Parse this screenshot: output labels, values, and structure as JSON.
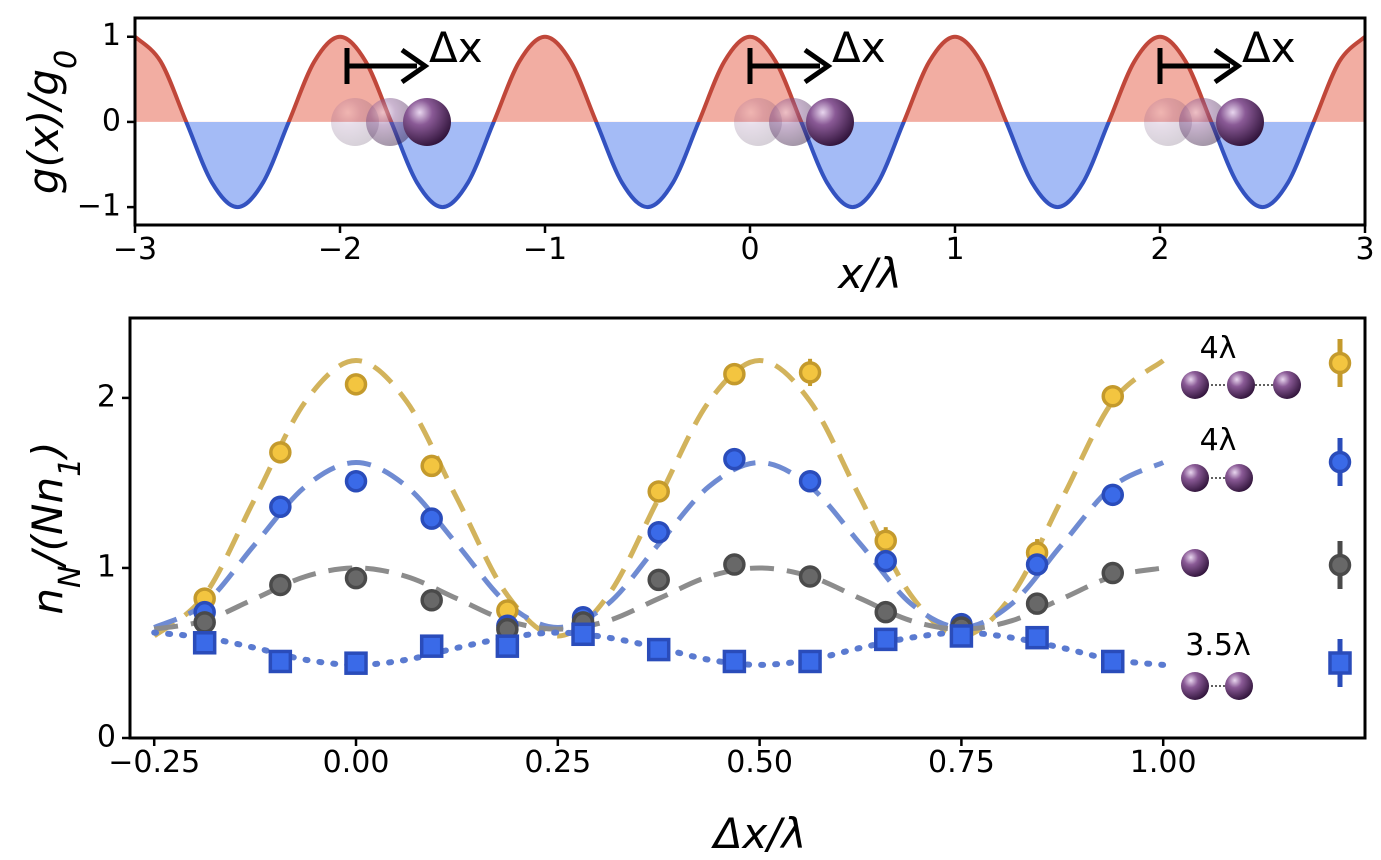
{
  "chart_data": [
    {
      "type": "area",
      "ylabel": [
        "g(x)/g",
        "0"
      ],
      "xlabel": "x/λ",
      "xlim": [
        -3,
        3
      ],
      "ylim": [
        -1.21,
        1.22
      ],
      "xticks": [
        {
          "value": -3,
          "label": "−3"
        },
        {
          "value": -2,
          "label": "−2"
        },
        {
          "value": -1,
          "label": "−1"
        },
        0,
        1,
        2,
        3
      ],
      "yticks": [
        {
          "value": -1,
          "label": "−1"
        },
        0,
        1
      ],
      "x": [
        -3,
        -2.875,
        -2.75,
        -2.625,
        -2.5,
        -2.375,
        -2.25,
        -2.125,
        -2,
        -1.875,
        -1.75,
        -1.625,
        -1.5,
        -1.375,
        -1.25,
        -1.125,
        -1,
        -0.875,
        -0.75,
        -0.625,
        -0.5,
        -0.375,
        -0.25,
        -0.125,
        0,
        0.125,
        0.25,
        0.375,
        0.5,
        0.625,
        0.75,
        0.875,
        1,
        1.125,
        1.25,
        1.375,
        1.5,
        1.625,
        1.75,
        1.875,
        2,
        2.125,
        2.25,
        2.375,
        2.5,
        2.625,
        2.75,
        2.875,
        3
      ],
      "values": [
        1,
        0.71,
        0,
        -0.71,
        -1,
        -0.71,
        0,
        0.71,
        1,
        0.71,
        0,
        -0.71,
        -1,
        -0.71,
        0,
        0.71,
        1,
        0.71,
        0,
        -0.71,
        -1,
        -0.71,
        0,
        0.71,
        1,
        0.71,
        0,
        -0.71,
        -1,
        -0.71,
        0,
        0.71,
        1,
        0.71,
        0,
        -0.71,
        -1,
        -0.71,
        0,
        0.71,
        1,
        0.71,
        0,
        -0.71,
        -1,
        -0.71,
        0,
        0.71,
        1
      ],
      "color_above": "#c0473a",
      "color_below": "#3352c0",
      "fill_above": "#f2ada2",
      "fill_below": "#a4bbf6",
      "annotations": [
        "Δx",
        "Δx",
        "Δx"
      ]
    },
    {
      "type": "scatter",
      "xlabel": "Δx/λ",
      "ylabel": [
        "n",
        "N",
        "/(Nn",
        "1",
        ")"
      ],
      "xlim": [
        -0.28,
        1.25
      ],
      "ylim": [
        0,
        2.47
      ],
      "xticks": [
        {
          "value": -0.25,
          "label": "−0.25"
        },
        {
          "value": 0,
          "label": "0.00"
        },
        {
          "value": 0.25,
          "label": "0.25"
        },
        {
          "value": 0.5,
          "label": "0.50"
        },
        {
          "value": 0.75,
          "label": "0.75"
        },
        {
          "value": 1,
          "label": "1.00"
        }
      ],
      "yticks": [
        0,
        1,
        2
      ],
      "x": [
        -0.1875,
        -0.09375,
        0,
        0.09375,
        0.1875,
        0.28125,
        0.375,
        0.46875,
        0.5625,
        0.65625,
        0.75,
        0.84375,
        0.9375
      ],
      "fit_x": [
        -0.25,
        -0.1875,
        -0.125,
        -0.0625,
        0,
        0.0625,
        0.125,
        0.1875,
        0.25,
        0.3125,
        0.375,
        0.4375,
        0.5,
        0.5625,
        0.625,
        0.6875,
        0.75,
        0.8125,
        0.875,
        0.9375,
        1
      ],
      "series": [
        {
          "name": "4λ",
          "color": "#f3c540",
          "edge": "#c49a2c",
          "marker": "circle",
          "values": [
            0.82,
            1.68,
            2.08,
            1.6,
            0.75,
            0.69,
            1.45,
            2.14,
            2.15,
            1.16,
            0.65,
            1.09,
            2.01
          ],
          "errors": [
            0.05,
            0.03,
            0.03,
            0.03,
            0.04,
            0.03,
            0.03,
            0.03,
            0.08,
            0.08,
            0.03,
            0.08,
            0.04
          ],
          "fit": [
            0.6,
            0.84,
            1.41,
            1.98,
            2.22,
            1.98,
            1.41,
            0.84,
            0.6,
            0.84,
            1.41,
            1.98,
            2.22,
            1.98,
            1.41,
            0.84,
            0.6,
            0.84,
            1.41,
            1.98,
            2.22
          ],
          "fit_color": "#d2b35c",
          "fit_style": "dashed"
        },
        {
          "name": "4λ",
          "color": "#3a6ae8",
          "edge": "#2a4cba",
          "marker": "circle",
          "values": [
            0.74,
            1.36,
            1.51,
            1.29,
            0.66,
            0.71,
            1.21,
            1.64,
            1.51,
            1.04,
            0.67,
            1.02,
            1.43
          ],
          "errors": [
            0.03,
            0.03,
            0.03,
            0.03,
            0.03,
            0.03,
            0.03,
            0.03,
            0.03,
            0.03,
            0.03,
            0.03,
            0.03
          ],
          "fit": [
            0.65,
            0.79,
            1.14,
            1.48,
            1.62,
            1.48,
            1.14,
            0.79,
            0.65,
            0.79,
            1.14,
            1.48,
            1.62,
            1.48,
            1.14,
            0.79,
            0.65,
            0.79,
            1.14,
            1.48,
            1.62
          ],
          "fit_color": "#6f8bd2",
          "fit_style": "dashed"
        },
        {
          "color": "#686868",
          "edge": "#4a4a4a",
          "marker": "circle",
          "values": [
            0.68,
            0.9,
            0.94,
            0.81,
            0.64,
            0.68,
            0.93,
            1.02,
            0.95,
            0.74,
            0.65,
            0.79,
            0.97
          ],
          "errors": [
            0.03,
            0.03,
            0.03,
            0.03,
            0.03,
            0.03,
            0.03,
            0.03,
            0.03,
            0.03,
            0.03,
            0.03,
            0.03
          ],
          "fit": [
            0.64,
            0.69,
            0.82,
            0.95,
            1,
            0.95,
            0.82,
            0.69,
            0.64,
            0.69,
            0.82,
            0.95,
            1,
            0.95,
            0.82,
            0.69,
            0.64,
            0.69,
            0.82,
            0.95,
            1
          ],
          "fit_color": "#8c8c8c",
          "fit_style": "dashed"
        },
        {
          "name": "3.5λ",
          "color": "#3a6ae8",
          "edge": "#2a4cba",
          "marker": "square",
          "values": [
            0.56,
            0.45,
            0.44,
            0.54,
            0.54,
            0.61,
            0.52,
            0.45,
            0.45,
            0.58,
            0.6,
            0.59,
            0.45
          ],
          "errors": [
            0.02,
            0.02,
            0.02,
            0.02,
            0.02,
            0.02,
            0.02,
            0.02,
            0.02,
            0.02,
            0.02,
            0.02,
            0.02
          ],
          "fit": [
            0.62,
            0.59,
            0.53,
            0.46,
            0.43,
            0.46,
            0.53,
            0.59,
            0.62,
            0.59,
            0.53,
            0.46,
            0.43,
            0.46,
            0.53,
            0.59,
            0.62,
            0.59,
            0.53,
            0.46,
            0.43
          ],
          "fit_color": "#5a7ad0",
          "fit_style": "dotted"
        }
      ]
    }
  ]
}
